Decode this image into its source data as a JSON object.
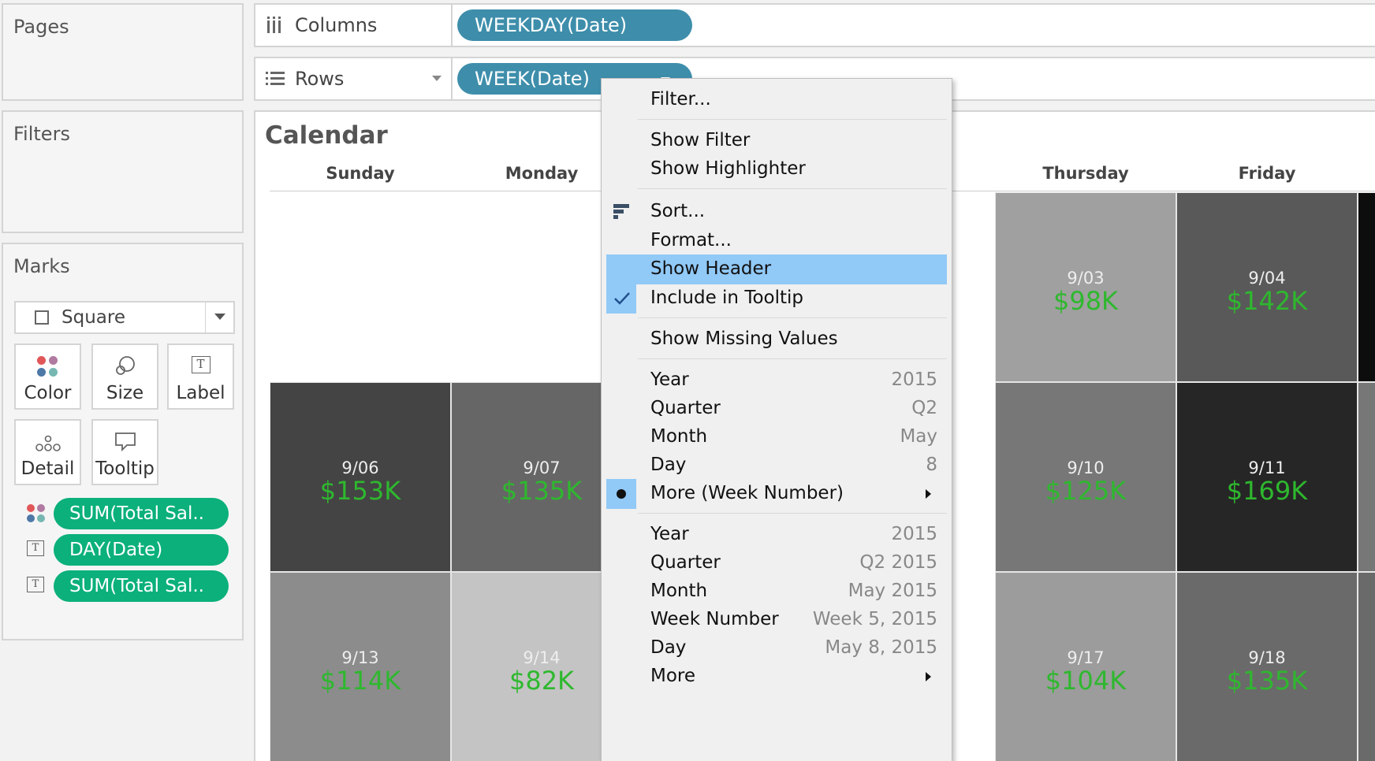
{
  "pages": {
    "title": "Pages"
  },
  "filters": {
    "title": "Filters"
  },
  "marks": {
    "title": "Marks",
    "mark_type": "Square",
    "buttons": {
      "color": "Color",
      "size": "Size",
      "label": "Label",
      "detail": "Detail",
      "tooltip": "Tooltip"
    },
    "pills": [
      {
        "icon": "color-dots-icon",
        "label": "SUM(Total Sal.."
      },
      {
        "icon": "text-label-icon",
        "label": "DAY(Date)"
      },
      {
        "icon": "text-label-icon",
        "label": "SUM(Total Sal.."
      }
    ]
  },
  "shelves": {
    "columns": {
      "label": "Columns",
      "pill": "WEEKDAY(Date)"
    },
    "rows": {
      "label": "Rows",
      "pill": "WEEK(Date)"
    }
  },
  "view": {
    "title": "Calendar",
    "day_headers": [
      "Sunday",
      "Monday",
      "",
      "",
      "Thursday",
      "Friday"
    ],
    "weeks": [
      [
        null,
        null,
        null,
        {
          "date": "",
          "value": ""
        },
        {
          "date": "9/03",
          "value": "$98K"
        },
        {
          "date": "9/04",
          "value": "$142K"
        }
      ],
      [
        {
          "date": "9/06",
          "value": "$153K"
        },
        {
          "date": "9/07",
          "value": "$135K"
        },
        null,
        {
          "date": "",
          "value": ""
        },
        {
          "date": "9/10",
          "value": "$125K"
        },
        {
          "date": "9/11",
          "value": "$169K"
        }
      ],
      [
        {
          "date": "9/13",
          "value": "$114K"
        },
        {
          "date": "9/14",
          "value": "$82K"
        },
        null,
        {
          "date": "",
          "value": ""
        },
        {
          "date": "9/17",
          "value": "$104K"
        },
        {
          "date": "9/18",
          "value": "$135K"
        }
      ]
    ]
  },
  "context_menu": {
    "items": [
      {
        "label": "Filter...",
        "right": ""
      },
      {
        "label": "Show Filter",
        "right": ""
      },
      {
        "label": "Show Highlighter",
        "right": ""
      },
      {
        "label": "Sort...",
        "right": "",
        "icon": "sort-icon"
      },
      {
        "label": "Format...",
        "right": ""
      },
      {
        "label": "Show Header",
        "right": "",
        "highlighted": true
      },
      {
        "label": "Include in Tooltip",
        "right": "",
        "icon": "checkmark-icon",
        "checked": true
      },
      {
        "label": "Show Missing Values",
        "right": ""
      },
      {
        "label": "Year",
        "right": "2015"
      },
      {
        "label": "Quarter",
        "right": "Q2"
      },
      {
        "label": "Month",
        "right": "May"
      },
      {
        "label": "Day",
        "right": "8"
      },
      {
        "label": "More (Week Number)",
        "right": "",
        "icon": "bullet-icon",
        "selected": true,
        "submenu": true
      },
      {
        "label": "Year",
        "right": "2015"
      },
      {
        "label": "Quarter",
        "right": "Q2 2015"
      },
      {
        "label": "Month",
        "right": "May 2015"
      },
      {
        "label": "Week Number",
        "right": "Week 5, 2015"
      },
      {
        "label": "Day",
        "right": "May 8, 2015"
      },
      {
        "label": "More",
        "right": "",
        "submenu": true
      }
    ]
  }
}
